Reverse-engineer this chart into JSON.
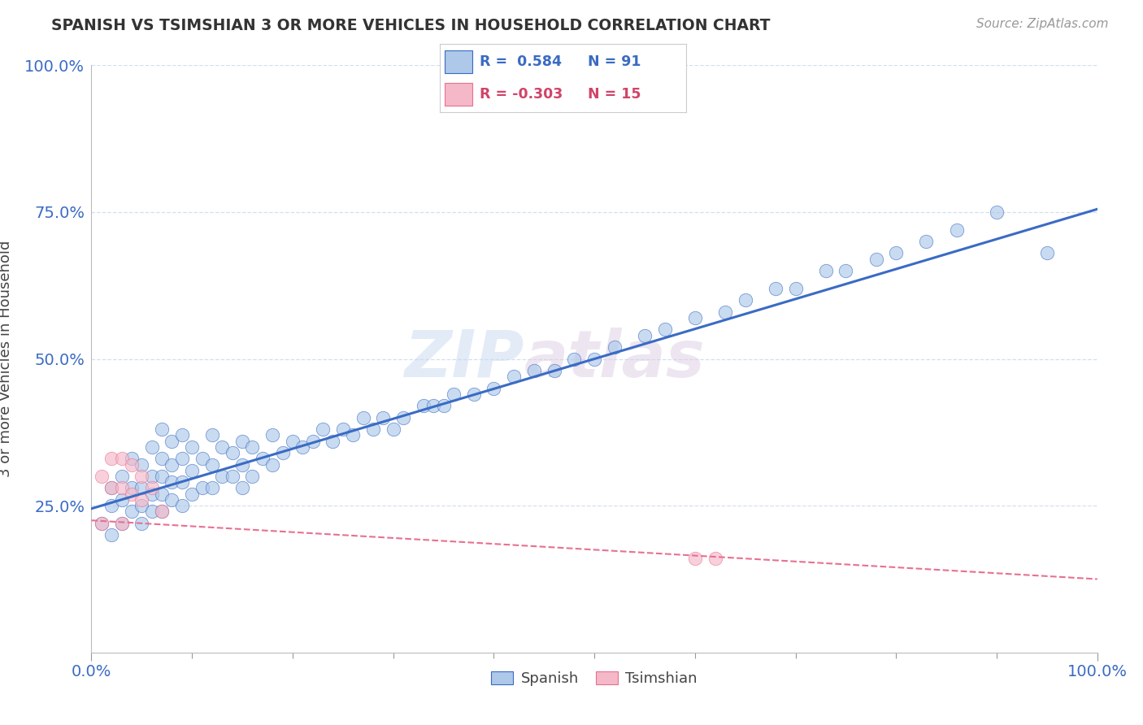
{
  "title": "SPANISH VS TSIMSHIAN 3 OR MORE VEHICLES IN HOUSEHOLD CORRELATION CHART",
  "source_text": "Source: ZipAtlas.com",
  "ylabel": "3 or more Vehicles in Household",
  "watermark_zip": "ZIP",
  "watermark_atlas": "atlas",
  "legend_label1": "Spanish",
  "legend_label2": "Tsimshian",
  "r1": 0.584,
  "n1": 91,
  "r2": -0.303,
  "n2": 15,
  "xmin": 0.0,
  "xmax": 1.0,
  "ymin": 0.0,
  "ymax": 1.0,
  "color_spanish": "#adc8e8",
  "color_tsimshian": "#f5b8c8",
  "line_color_spanish": "#3a6bc4",
  "line_color_tsimshian": "#e87090",
  "background_color": "#ffffff",
  "grid_color": "#c8d8ec",
  "spanish_x": [
    0.01,
    0.02,
    0.02,
    0.02,
    0.03,
    0.03,
    0.03,
    0.04,
    0.04,
    0.04,
    0.05,
    0.05,
    0.05,
    0.05,
    0.06,
    0.06,
    0.06,
    0.06,
    0.07,
    0.07,
    0.07,
    0.07,
    0.07,
    0.08,
    0.08,
    0.08,
    0.08,
    0.09,
    0.09,
    0.09,
    0.09,
    0.1,
    0.1,
    0.1,
    0.11,
    0.11,
    0.12,
    0.12,
    0.12,
    0.13,
    0.13,
    0.14,
    0.14,
    0.15,
    0.15,
    0.15,
    0.16,
    0.16,
    0.17,
    0.18,
    0.18,
    0.19,
    0.2,
    0.21,
    0.22,
    0.23,
    0.24,
    0.25,
    0.26,
    0.27,
    0.28,
    0.29,
    0.3,
    0.31,
    0.33,
    0.34,
    0.35,
    0.36,
    0.38,
    0.4,
    0.42,
    0.44,
    0.46,
    0.48,
    0.5,
    0.52,
    0.55,
    0.57,
    0.6,
    0.63,
    0.65,
    0.68,
    0.7,
    0.73,
    0.75,
    0.78,
    0.8,
    0.83,
    0.86,
    0.9,
    0.95
  ],
  "spanish_y": [
    0.22,
    0.2,
    0.25,
    0.28,
    0.22,
    0.26,
    0.3,
    0.24,
    0.28,
    0.33,
    0.22,
    0.25,
    0.28,
    0.32,
    0.24,
    0.27,
    0.3,
    0.35,
    0.24,
    0.27,
    0.3,
    0.33,
    0.38,
    0.26,
    0.29,
    0.32,
    0.36,
    0.25,
    0.29,
    0.33,
    0.37,
    0.27,
    0.31,
    0.35,
    0.28,
    0.33,
    0.28,
    0.32,
    0.37,
    0.3,
    0.35,
    0.3,
    0.34,
    0.28,
    0.32,
    0.36,
    0.3,
    0.35,
    0.33,
    0.32,
    0.37,
    0.34,
    0.36,
    0.35,
    0.36,
    0.38,
    0.36,
    0.38,
    0.37,
    0.4,
    0.38,
    0.4,
    0.38,
    0.4,
    0.42,
    0.42,
    0.42,
    0.44,
    0.44,
    0.45,
    0.47,
    0.48,
    0.48,
    0.5,
    0.5,
    0.52,
    0.54,
    0.55,
    0.57,
    0.58,
    0.6,
    0.62,
    0.62,
    0.65,
    0.65,
    0.67,
    0.68,
    0.7,
    0.72,
    0.75,
    0.68
  ],
  "tsimshian_x": [
    0.01,
    0.01,
    0.02,
    0.02,
    0.03,
    0.03,
    0.03,
    0.04,
    0.04,
    0.05,
    0.05,
    0.06,
    0.07,
    0.6,
    0.62
  ],
  "tsimshian_y": [
    0.3,
    0.22,
    0.28,
    0.33,
    0.22,
    0.28,
    0.33,
    0.27,
    0.32,
    0.26,
    0.3,
    0.28,
    0.24,
    0.16,
    0.16
  ],
  "line_start_x": 0.0,
  "line_end_x": 1.0,
  "line_start_y_spanish": 0.245,
  "line_end_y_spanish": 0.755,
  "line_start_y_tsimshian": 0.225,
  "line_end_y_tsimshian": 0.125
}
